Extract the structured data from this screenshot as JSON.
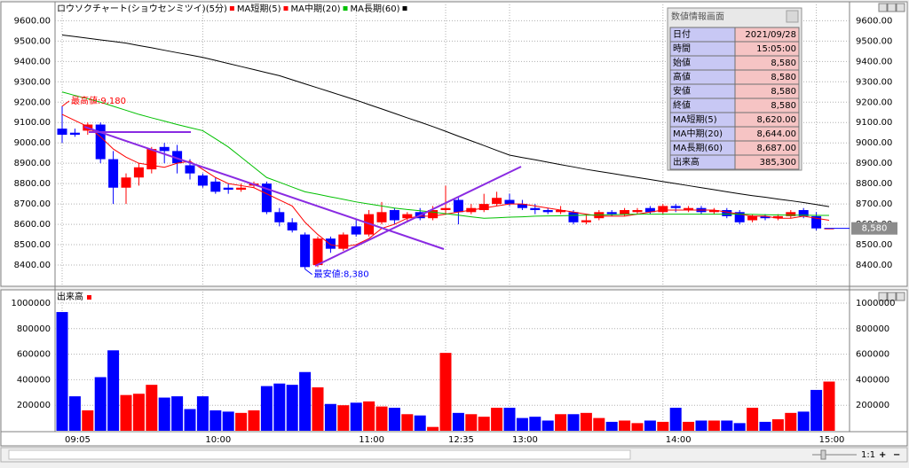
{
  "chart_data": [
    {
      "type": "candlestick",
      "title": "ロウソクチャート(ショウセンミツイ)(5分)",
      "categories": [
        "09:05",
        null,
        null,
        null,
        null,
        null,
        null,
        null,
        null,
        null,
        null,
        "10:00",
        null,
        null,
        null,
        null,
        null,
        null,
        null,
        null,
        null,
        null,
        null,
        "11:00",
        null,
        null,
        null,
        null,
        null,
        null,
        "12:35",
        null,
        null,
        null,
        null,
        "13:00",
        null,
        null,
        null,
        null,
        null,
        null,
        null,
        null,
        null,
        null,
        null,
        "14:00",
        null,
        null,
        null,
        null,
        null,
        null,
        null,
        null,
        null,
        null,
        null,
        "15:00",
        null
      ],
      "open": [
        9070,
        9050,
        9060,
        9090,
        8920,
        8780,
        8830,
        8870,
        8980,
        8960,
        8890,
        8840,
        8810,
        8780,
        8770,
        8790,
        8800,
        8660,
        8610,
        8550,
        8400,
        8530,
        8480,
        8590,
        8550,
        8610,
        8670,
        8630,
        8660,
        8630,
        8670,
        8720,
        8660,
        8670,
        8700,
        8720,
        8700,
        8680,
        8670,
        8660,
        8660,
        8610,
        8630,
        8660,
        8650,
        8660,
        8680,
        8660,
        8690,
        8670,
        8680,
        8660,
        8670,
        8660,
        8620,
        8640,
        8630,
        8640,
        8670,
        8640,
        8580
      ],
      "high": [
        9180,
        9070,
        9100,
        9100,
        8960,
        8850,
        8900,
        8980,
        9000,
        8990,
        8920,
        8850,
        8830,
        8800,
        8800,
        8810,
        8810,
        8680,
        8630,
        8560,
        8540,
        8540,
        8560,
        8620,
        8670,
        8710,
        8680,
        8660,
        8680,
        8690,
        8790,
        8730,
        8700,
        8750,
        8760,
        8750,
        8720,
        8700,
        8680,
        8690,
        8670,
        8650,
        8670,
        8670,
        8680,
        8680,
        8690,
        8700,
        8700,
        8690,
        8690,
        8680,
        8680,
        8670,
        8650,
        8650,
        8650,
        8670,
        8680,
        8660,
        8580
      ],
      "low": [
        9000,
        9030,
        9040,
        8900,
        8700,
        8700,
        8790,
        8850,
        8900,
        8850,
        8820,
        8780,
        8750,
        8750,
        8760,
        8780,
        8650,
        8590,
        8560,
        8380,
        8390,
        8460,
        8470,
        8540,
        8540,
        8600,
        8600,
        8610,
        8620,
        8620,
        8650,
        8600,
        8650,
        8660,
        8690,
        8690,
        8670,
        8650,
        8650,
        8650,
        8600,
        8600,
        8620,
        8640,
        8640,
        8650,
        8650,
        8650,
        8660,
        8660,
        8650,
        8650,
        8630,
        8600,
        8610,
        8620,
        8620,
        8630,
        8630,
        8570,
        8580
      ],
      "close": [
        9040,
        9040,
        9090,
        8920,
        8780,
        8830,
        8880,
        8970,
        8960,
        8900,
        8850,
        8790,
        8760,
        8770,
        8780,
        8800,
        8660,
        8610,
        8570,
        8390,
        8530,
        8480,
        8550,
        8550,
        8650,
        8660,
        8620,
        8650,
        8630,
        8670,
        8680,
        8660,
        8680,
        8700,
        8730,
        8700,
        8680,
        8670,
        8660,
        8670,
        8610,
        8620,
        8660,
        8650,
        8670,
        8670,
        8660,
        8690,
        8680,
        8680,
        8660,
        8670,
        8640,
        8610,
        8640,
        8630,
        8640,
        8660,
        8640,
        8580,
        8580
      ],
      "up_color": "#ff0000",
      "down_color": "#0000ff",
      "series": [
        {
          "name": "MA短期(5)",
          "color": "#ff0000",
          "values": [
            9140,
            9110,
            9080,
            9030,
            8970,
            8930,
            8900,
            8890,
            8880,
            8900,
            8910,
            8870,
            8830,
            8800,
            8790,
            8780,
            8750,
            8720,
            8690,
            8610,
            8550,
            8500,
            8490,
            8500,
            8530,
            8580,
            8600,
            8630,
            8640,
            8640,
            8650,
            8660,
            8670,
            8680,
            8690,
            8700,
            8700,
            8690,
            8680,
            8670,
            8660,
            8650,
            8640,
            8640,
            8640,
            8650,
            8660,
            8670,
            8670,
            8670,
            8670,
            8670,
            8660,
            8650,
            8640,
            8640,
            8630,
            8630,
            8640,
            8630,
            8620
          ]
        },
        {
          "name": "MA中期(20)",
          "color": "#00c000",
          "values": [
            9250,
            9233,
            9217,
            9200,
            9180,
            9160,
            9140,
            9123,
            9107,
            9090,
            9075,
            9060,
            9020,
            8980,
            8930,
            8880,
            8830,
            8807,
            8783,
            8760,
            8748,
            8735,
            8723,
            8710,
            8700,
            8690,
            8680,
            8673,
            8667,
            8660,
            8652,
            8645,
            8637,
            8630,
            8632,
            8635,
            8637,
            8640,
            8641,
            8642,
            8644,
            8645,
            8646,
            8647,
            8649,
            8650,
            8650,
            8650,
            8650,
            8650,
            8650,
            8650,
            8650,
            8650,
            8649,
            8647,
            8646,
            8645,
            8645,
            8644,
            8644
          ]
        },
        {
          "name": "MA長期(60)",
          "color": "#000000",
          "values": [
            9530,
            9522,
            9514,
            9506,
            9498,
            9490,
            9478,
            9467,
            9455,
            9443,
            9432,
            9420,
            9405,
            9390,
            9375,
            9360,
            9345,
            9330,
            9310,
            9290,
            9270,
            9250,
            9230,
            9210,
            9188,
            9167,
            9145,
            9123,
            9102,
            9080,
            9057,
            9033,
            9010,
            8987,
            8963,
            8940,
            8928,
            8917,
            8905,
            8893,
            8882,
            8870,
            8860,
            8850,
            8840,
            8830,
            8820,
            8810,
            8800,
            8790,
            8780,
            8770,
            8760,
            8750,
            8741,
            8733,
            8724,
            8716,
            8707,
            8697,
            8687
          ]
        }
      ],
      "ylim": [
        8300,
        9680
      ],
      "yticks": [
        {
          "value": 8400,
          "label": "8400.00"
        },
        {
          "value": 8500,
          "label": "8500.00"
        },
        {
          "value": 8600,
          "label": "8600.00"
        },
        {
          "value": 8700,
          "label": "8700.00"
        },
        {
          "value": 8800,
          "label": "8800.00"
        },
        {
          "value": 8900,
          "label": "8900.00"
        },
        {
          "value": 9000,
          "label": "9000.00"
        },
        {
          "value": 9100,
          "label": "9100.00"
        },
        {
          "value": 9200,
          "label": "9200.00"
        },
        {
          "value": 9300,
          "label": "9300.00"
        },
        {
          "value": 9400,
          "label": "9400.00"
        },
        {
          "value": 9500,
          "label": "9500.00"
        },
        {
          "value": 9600,
          "label": "9600.00"
        }
      ],
      "grid": true,
      "annotations": [
        {
          "text": "最高値:9,180",
          "index": 0,
          "value": 9180,
          "color": "#ff0000"
        },
        {
          "text": "最安値:8,380",
          "index": 19,
          "value": 8380,
          "color": "#0000ff"
        }
      ],
      "last_price": {
        "value": 8580,
        "label": "8,580"
      }
    },
    {
      "type": "bar",
      "title": "出来高",
      "values": [
        930000,
        270000,
        160000,
        420000,
        630000,
        280000,
        290000,
        360000,
        260000,
        270000,
        170000,
        270000,
        160000,
        150000,
        140000,
        160000,
        350000,
        370000,
        360000,
        460000,
        340000,
        210000,
        200000,
        220000,
        230000,
        190000,
        180000,
        130000,
        120000,
        30000,
        610000,
        140000,
        130000,
        110000,
        180000,
        180000,
        100000,
        110000,
        80000,
        130000,
        130000,
        140000,
        100000,
        70000,
        80000,
        60000,
        80000,
        70000,
        180000,
        70000,
        80000,
        80000,
        80000,
        60000,
        180000,
        70000,
        90000,
        140000,
        150000,
        320000,
        385300
      ],
      "ylim": [
        0,
        1090000
      ],
      "yticks": [
        200000,
        400000,
        600000,
        800000,
        1000000
      ],
      "grid": true
    }
  ],
  "info_panel": {
    "title": "数値情報画面",
    "rows": [
      [
        "日付",
        "2021/09/28"
      ],
      [
        "時間",
        "15:05:00"
      ],
      [
        "始値",
        "8,580"
      ],
      [
        "高値",
        "8,580"
      ],
      [
        "安値",
        "8,580"
      ],
      [
        "終値",
        "8,580"
      ],
      [
        "MA短期(5)",
        "8,620.00"
      ],
      [
        "MA中期(20)",
        "8,644.00"
      ],
      [
        "MA長期(60)",
        "8,687.00"
      ],
      [
        "出来高",
        "385,300"
      ]
    ]
  }
}
